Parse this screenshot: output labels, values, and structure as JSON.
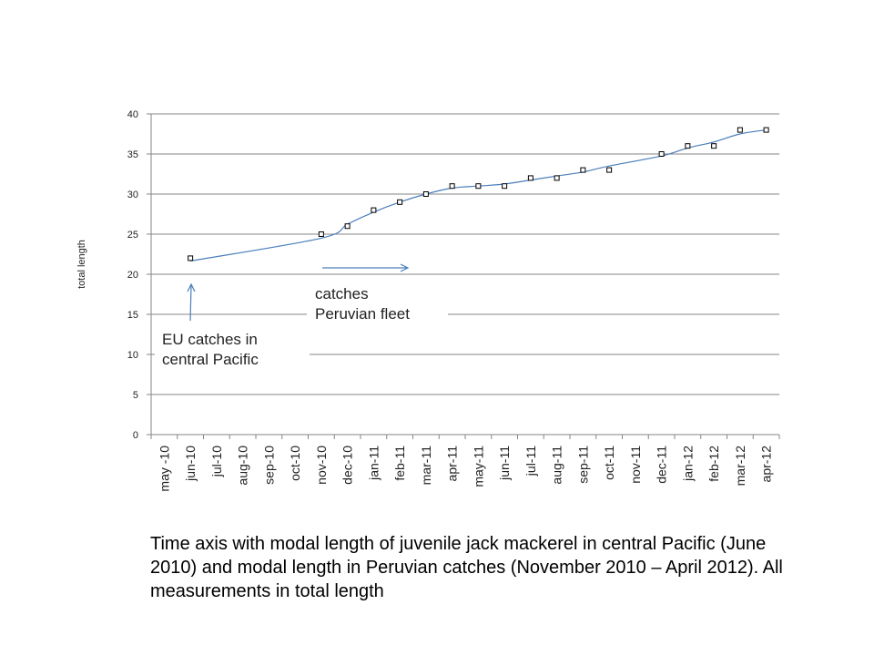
{
  "chart_data": {
    "type": "scatter",
    "categories": [
      "may -10",
      "jun-10",
      "jul-10",
      "aug-10",
      "sep-10",
      "oct-10",
      "nov-10",
      "dec-10",
      "jan-11",
      "feb-11",
      "mar-11",
      "apr-11",
      "may-11",
      "jun-11",
      "jul-11",
      "aug-11",
      "sep-11",
      "oct-11",
      "nov-11",
      "dec-11",
      "jan-12",
      "feb-12",
      "mar-12",
      "apr-12"
    ],
    "points": [
      {
        "x": "jun-10",
        "y": 22
      },
      {
        "x": "nov-10",
        "y": 25
      },
      {
        "x": "dec-10",
        "y": 26
      },
      {
        "x": "jan-11",
        "y": 28
      },
      {
        "x": "feb-11",
        "y": 29
      },
      {
        "x": "mar-11",
        "y": 30
      },
      {
        "x": "apr-11",
        "y": 31
      },
      {
        "x": "may-11",
        "y": 31
      },
      {
        "x": "jun-11",
        "y": 31
      },
      {
        "x": "jul-11",
        "y": 32
      },
      {
        "x": "aug-11",
        "y": 32
      },
      {
        "x": "sep-11",
        "y": 33
      },
      {
        "x": "oct-11",
        "y": 33
      },
      {
        "x": "dec-11",
        "y": 35
      },
      {
        "x": "jan-12",
        "y": 36
      },
      {
        "x": "feb-12",
        "y": 36
      },
      {
        "x": "mar-12",
        "y": 38
      },
      {
        "x": "apr-12",
        "y": 38
      }
    ],
    "trend_line": "smooth fit through points",
    "ylabel": "total length",
    "xlabel": "",
    "ylim": [
      0,
      40
    ],
    "yticks": [
      0,
      5,
      10,
      15,
      20,
      25,
      30,
      35,
      40
    ],
    "grid": "horizontal",
    "colors": {
      "line": "#4a7ebb",
      "marker": "#000000",
      "grid": "#868686"
    }
  },
  "annotations": {
    "eu_catches": "EU catches in\ncentral Pacific",
    "peruvian_catches": "catches\nPeruvian fleet"
  },
  "caption": "Time axis with modal length of juvenile jack mackerel in central Pacific (June 2010) and modal length in Peruvian catches (November 2010 – April 2012).  All measurements  in total length"
}
